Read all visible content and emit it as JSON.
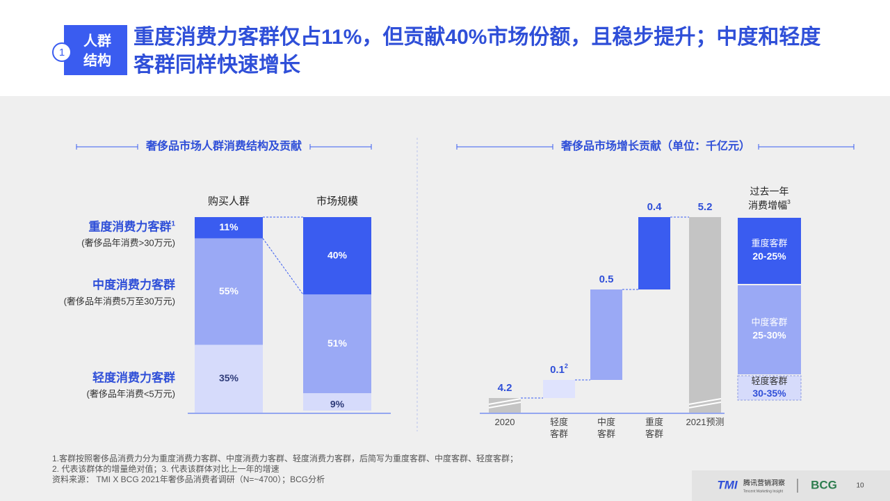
{
  "header": {
    "badge_number": "1",
    "badge_lines": [
      "人群",
      "结构"
    ],
    "title": "重度消费力客群仅占11%，但贡献40%市场份额，且稳步提升；中度和轻度客群同样快速增长"
  },
  "chart_data": [
    {
      "type": "stacked-bar",
      "title": "奢侈品市场人群消费结构及贡献",
      "categories": [
        "购买人群",
        "市场规模"
      ],
      "series": [
        {
          "name": "重度消费力客群",
          "note_marker": "1",
          "description": "(奢侈品年消费>30万元)",
          "color": "#3a5cf0",
          "values": [
            11,
            40
          ],
          "value_labels": [
            "11%",
            "40%"
          ]
        },
        {
          "name": "中度消费力客群",
          "description": "(奢侈品年消费5万至30万元)",
          "color": "#9aa9f5",
          "values": [
            55,
            51
          ],
          "value_labels": [
            "55%",
            "51%"
          ]
        },
        {
          "name": "轻度消费力客群",
          "description": "(奢侈品年消费<5万元)",
          "color": "#d6dbfb",
          "values": [
            35,
            9
          ],
          "value_labels": [
            "35%",
            "9%"
          ]
        }
      ]
    },
    {
      "type": "waterfall",
      "title": "奢侈品市场增长贡献（单位：千亿元）",
      "categories": [
        "2020",
        "轻度客群",
        "中度客群",
        "重度客群",
        "2021预测"
      ],
      "values": [
        4.2,
        0.1,
        0.5,
        0.4,
        5.2
      ],
      "bar_kinds": [
        "total",
        "increase",
        "increase",
        "increase",
        "total"
      ],
      "colors": [
        "#c4c4c4",
        "#dfe3fd",
        "#9aa9f5",
        "#3a5cf0",
        "#c4c4c4"
      ],
      "annotations": [
        {
          "category": "轻度客群",
          "text": "2"
        }
      ],
      "growth_panel": {
        "title_lines": [
          "过去一年",
          "消费增幅"
        ],
        "note_marker": "3",
        "items": [
          {
            "name": "重度客群",
            "range": "20-25%",
            "color": "#3a5cf0"
          },
          {
            "name": "中度客群",
            "range": "25-30%",
            "color": "#9aa9f5"
          },
          {
            "name": "轻度客群",
            "range": "30-35%",
            "color": "#d6dbfb"
          }
        ]
      }
    }
  ],
  "footnotes": [
    "1.客群按照奢侈品消费力分为重度消费力客群、中度消费力客群、轻度消费力客群，后简写为重度客群、中度客群、轻度客群；",
    "2. 代表该群体的增量绝对值；3. 代表该群体对比上一年的增速",
    "资料来源： TMI X BCG 2021年奢侈品消费者调研（N=~4700）；BCG分析"
  ],
  "footer": {
    "logo": "TMI",
    "logo_name": "腾讯营销洞察",
    "logo_tagline": "Tencent Marketing Insight",
    "partner": "BCG",
    "page": "10"
  }
}
